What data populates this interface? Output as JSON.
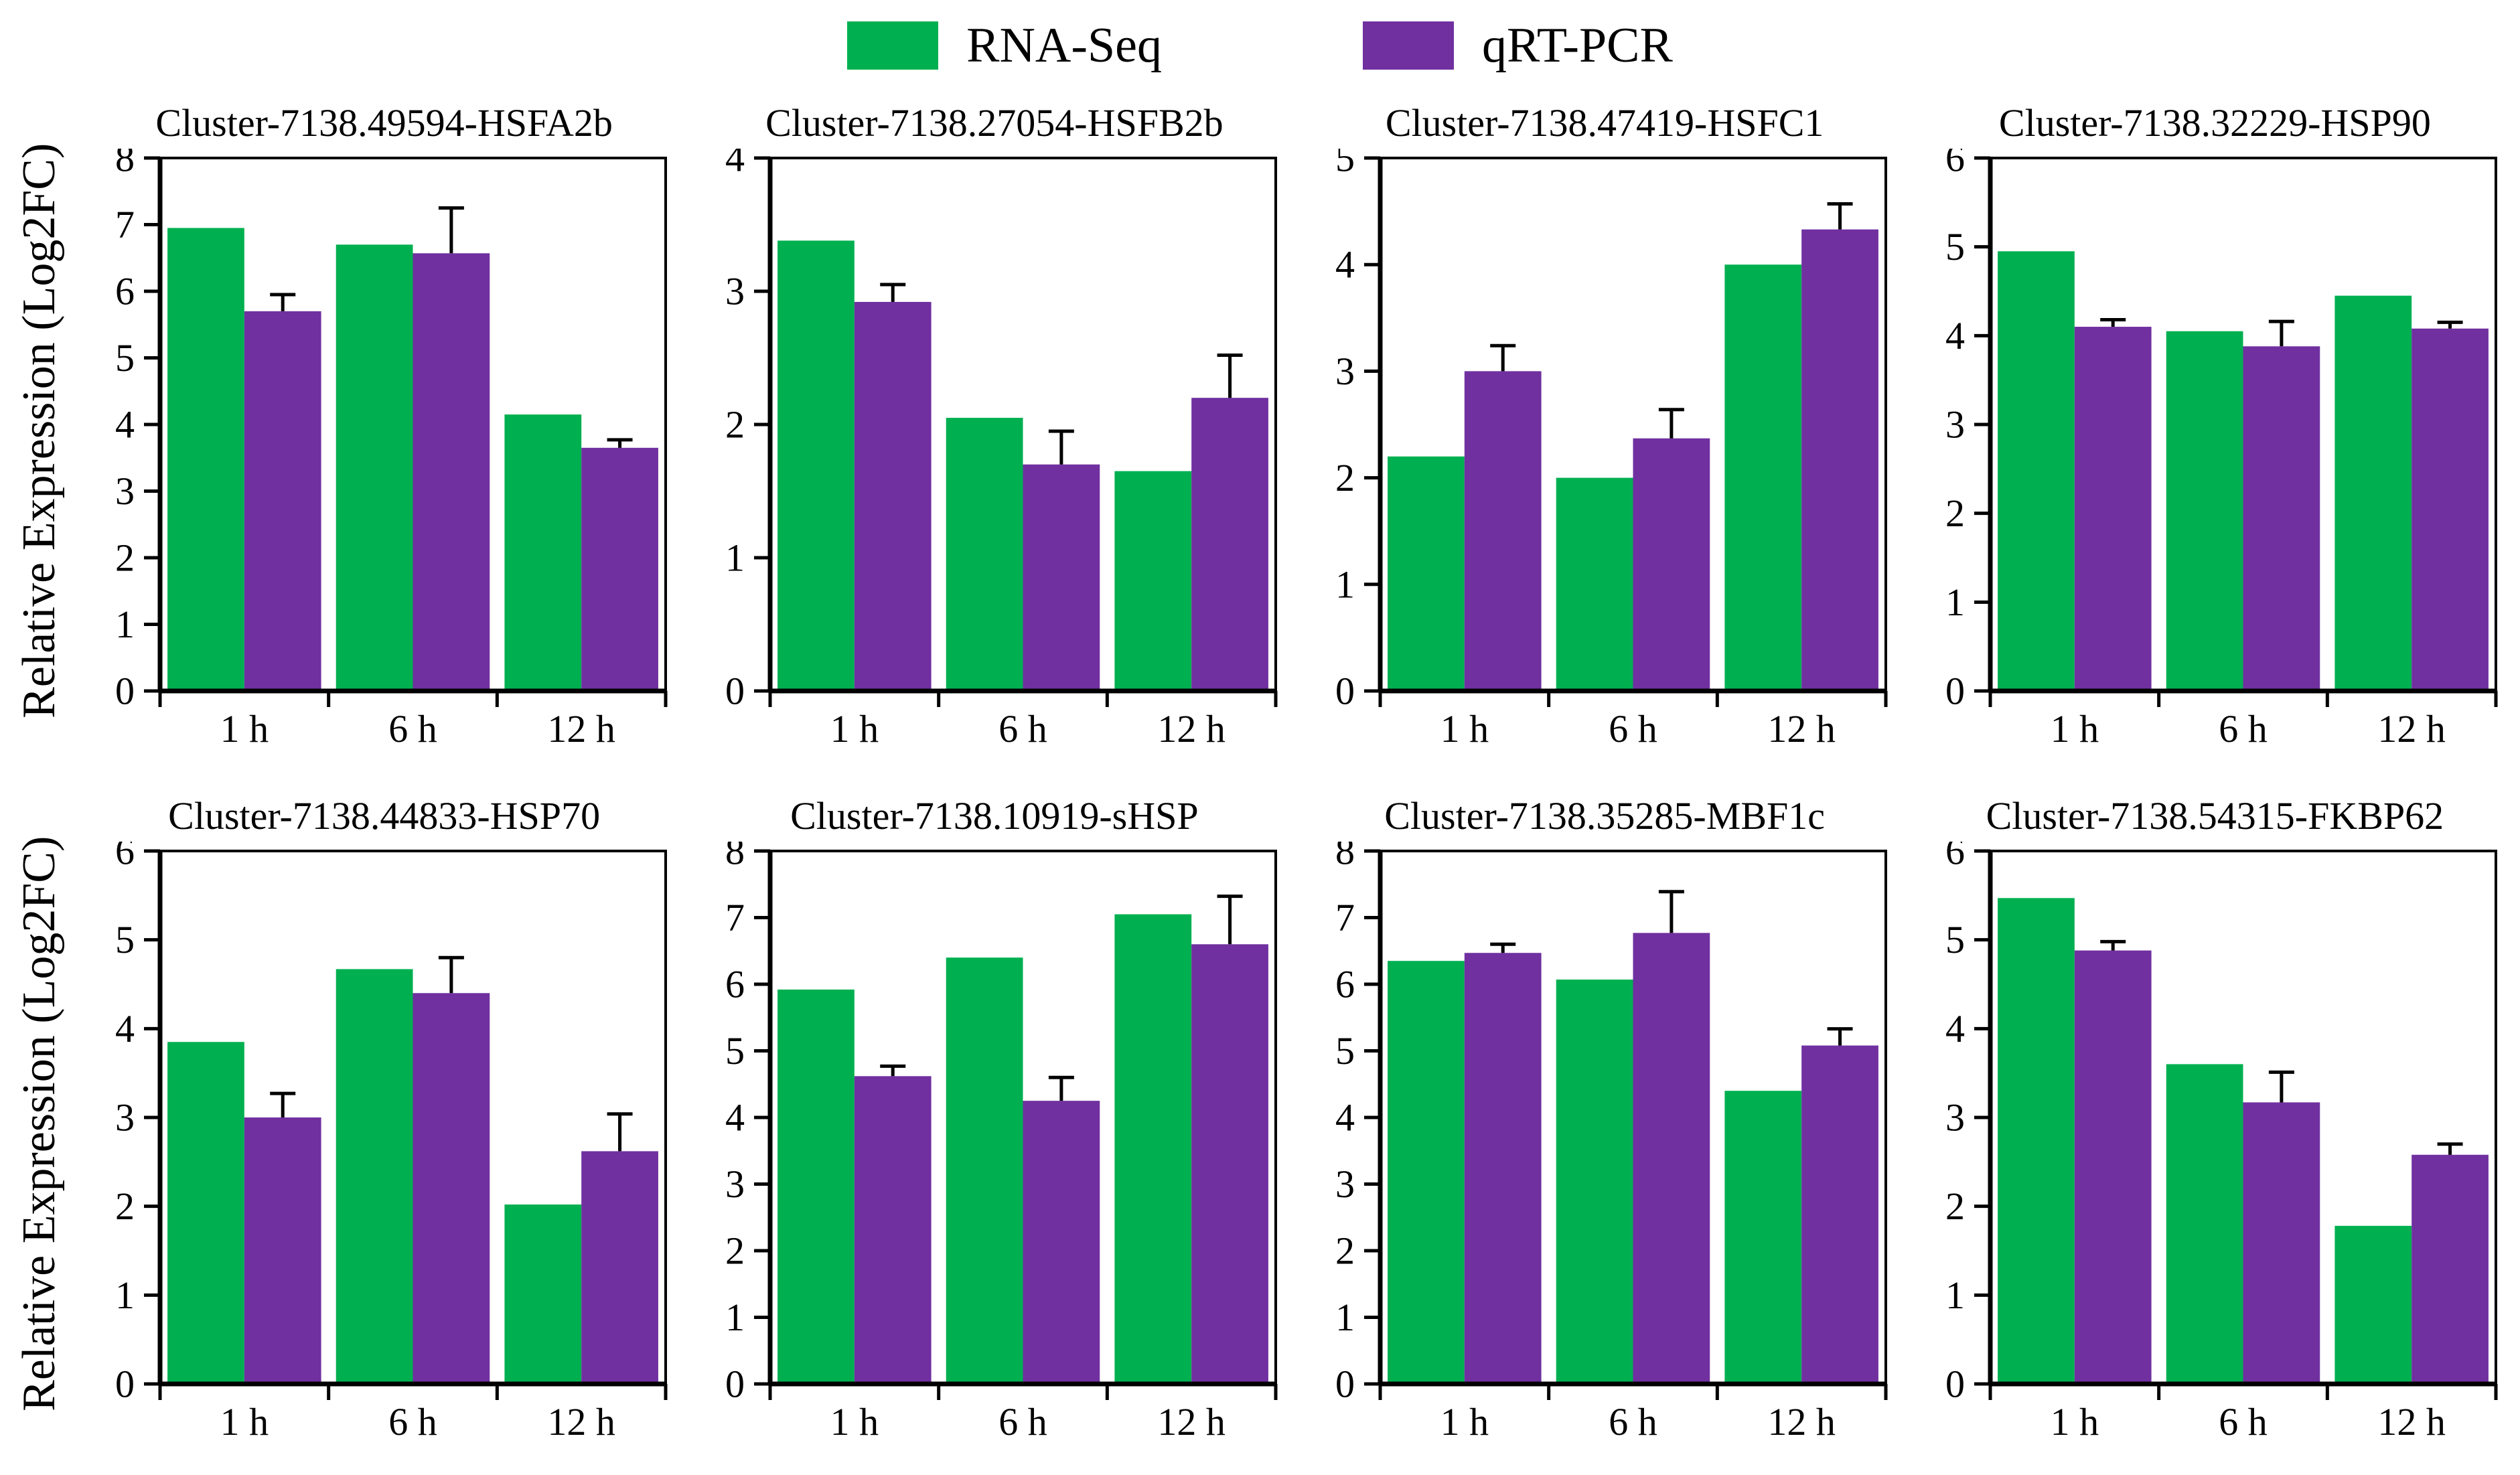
{
  "figure_title": "",
  "ylabel": "Relative Expression (Log2FC)",
  "legend": {
    "items": [
      {
        "label": "RNA-Seq",
        "color": "#00B050"
      },
      {
        "label": "qRT-PCR",
        "color": "#7030A0"
      }
    ]
  },
  "colors": {
    "rna_seq": "#00B050",
    "qrt_pcr": "#7030A0",
    "axis": "#000000"
  },
  "chart_data": [
    {
      "type": "bar",
      "title": "Cluster-7138.49594-HSFA2b",
      "categories": [
        "1 h",
        "6 h",
        "12 h"
      ],
      "ylim": [
        0,
        8
      ],
      "ytick_step": 1,
      "series": [
        {
          "name": "RNA-Seq",
          "values": [
            6.95,
            6.7,
            4.15
          ]
        },
        {
          "name": "qRT-PCR",
          "values": [
            5.7,
            6.57,
            3.65
          ],
          "errors": [
            0.25,
            0.68,
            0.12
          ]
        }
      ]
    },
    {
      "type": "bar",
      "title": "Cluster-7138.27054-HSFB2b",
      "categories": [
        "1 h",
        "6 h",
        "12 h"
      ],
      "ylim": [
        0,
        4
      ],
      "ytick_step": 1,
      "series": [
        {
          "name": "RNA-Seq",
          "values": [
            3.38,
            2.05,
            1.65
          ]
        },
        {
          "name": "qRT-PCR",
          "values": [
            2.92,
            1.7,
            2.2
          ],
          "errors": [
            0.13,
            0.25,
            0.32
          ]
        }
      ]
    },
    {
      "type": "bar",
      "title": "Cluster-7138.47419-HSFC1",
      "categories": [
        "1 h",
        "6 h",
        "12 h"
      ],
      "ylim": [
        0,
        5
      ],
      "ytick_step": 1,
      "series": [
        {
          "name": "RNA-Seq",
          "values": [
            2.2,
            2.0,
            4.0
          ]
        },
        {
          "name": "qRT-PCR",
          "values": [
            3.0,
            2.37,
            4.33
          ],
          "errors": [
            0.24,
            0.27,
            0.24
          ]
        }
      ]
    },
    {
      "type": "bar",
      "title": "Cluster-7138.32229-HSP90",
      "categories": [
        "1 h",
        "6 h",
        "12 h"
      ],
      "ylim": [
        0,
        6
      ],
      "ytick_step": 1,
      "series": [
        {
          "name": "RNA-Seq",
          "values": [
            4.95,
            4.05,
            4.45
          ]
        },
        {
          "name": "qRT-PCR",
          "values": [
            4.1,
            3.88,
            4.08
          ],
          "errors": [
            0.08,
            0.28,
            0.07
          ]
        }
      ]
    },
    {
      "type": "bar",
      "title": "Cluster-7138.44833-HSP70",
      "categories": [
        "1 h",
        "6 h",
        "12 h"
      ],
      "ylim": [
        0,
        6
      ],
      "ytick_step": 1,
      "series": [
        {
          "name": "RNA-Seq",
          "values": [
            3.85,
            4.67,
            2.02
          ]
        },
        {
          "name": "qRT-PCR",
          "values": [
            3.0,
            4.4,
            2.62
          ],
          "errors": [
            0.27,
            0.4,
            0.42
          ]
        }
      ]
    },
    {
      "type": "bar",
      "title": "Cluster-7138.10919-sHSP",
      "categories": [
        "1 h",
        "6 h",
        "12 h"
      ],
      "ylim": [
        0,
        8
      ],
      "ytick_step": 1,
      "series": [
        {
          "name": "RNA-Seq",
          "values": [
            5.92,
            6.4,
            7.05
          ]
        },
        {
          "name": "qRT-PCR",
          "values": [
            4.62,
            4.25,
            6.6
          ],
          "errors": [
            0.15,
            0.35,
            0.72
          ]
        }
      ]
    },
    {
      "type": "bar",
      "title": "Cluster-7138.35285-MBF1c",
      "categories": [
        "1 h",
        "6 h",
        "12 h"
      ],
      "ylim": [
        0,
        8
      ],
      "ytick_step": 1,
      "series": [
        {
          "name": "RNA-Seq",
          "values": [
            6.35,
            6.07,
            4.4
          ]
        },
        {
          "name": "qRT-PCR",
          "values": [
            6.47,
            6.77,
            5.08
          ],
          "errors": [
            0.13,
            0.62,
            0.25
          ]
        }
      ]
    },
    {
      "type": "bar",
      "title": "Cluster-7138.54315-FKBP62",
      "categories": [
        "1 h",
        "6 h",
        "12 h"
      ],
      "ylim": [
        0,
        6
      ],
      "ytick_step": 1,
      "series": [
        {
          "name": "RNA-Seq",
          "values": [
            5.47,
            3.6,
            1.78
          ]
        },
        {
          "name": "qRT-PCR",
          "values": [
            4.88,
            3.17,
            2.58
          ],
          "errors": [
            0.1,
            0.34,
            0.12
          ]
        }
      ]
    }
  ]
}
